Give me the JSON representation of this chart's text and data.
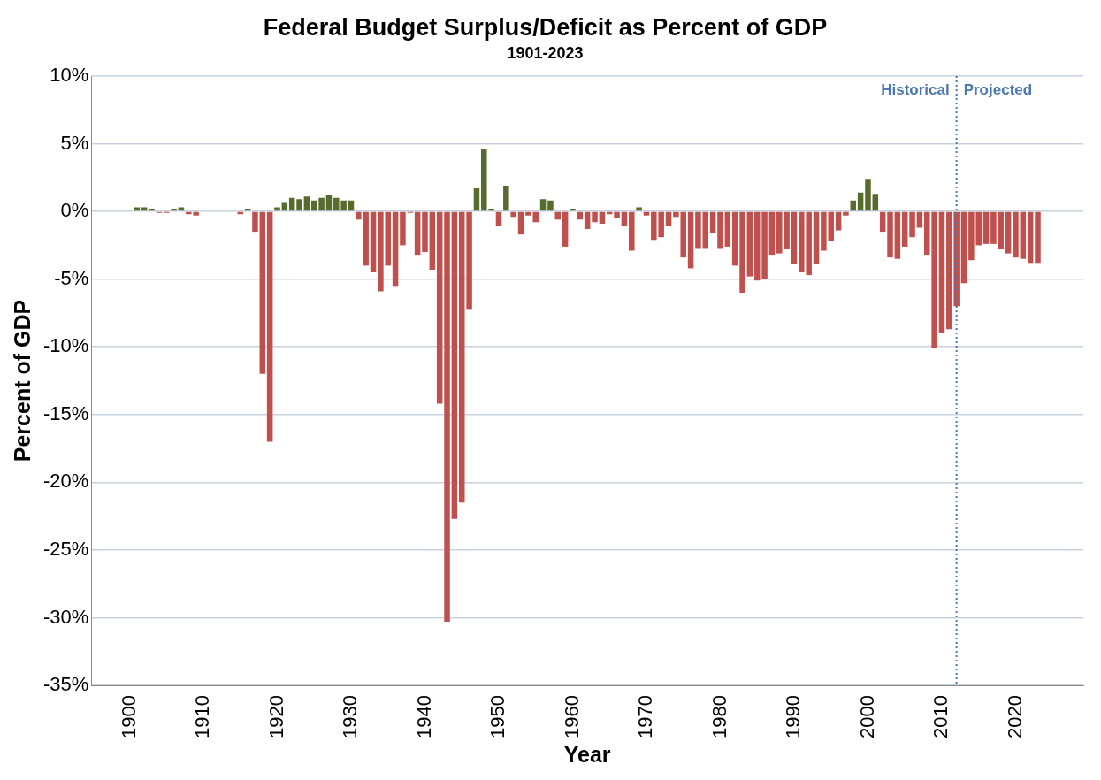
{
  "chart_data": {
    "type": "bar",
    "title": "Federal Budget Surplus/Deficit as Percent of GDP",
    "subtitle": "1901-2023",
    "xlabel": "Year",
    "ylabel": "Percent of GDP",
    "x": [
      1901,
      1902,
      1903,
      1904,
      1905,
      1906,
      1907,
      1908,
      1909,
      1910,
      1911,
      1912,
      1913,
      1914,
      1915,
      1916,
      1917,
      1918,
      1919,
      1920,
      1921,
      1922,
      1923,
      1924,
      1925,
      1926,
      1927,
      1928,
      1929,
      1930,
      1931,
      1932,
      1933,
      1934,
      1935,
      1936,
      1937,
      1938,
      1939,
      1940,
      1941,
      1942,
      1943,
      1944,
      1945,
      1946,
      1947,
      1948,
      1949,
      1950,
      1951,
      1952,
      1953,
      1954,
      1955,
      1956,
      1957,
      1958,
      1959,
      1960,
      1961,
      1962,
      1963,
      1964,
      1965,
      1966,
      1967,
      1968,
      1969,
      1970,
      1971,
      1972,
      1973,
      1974,
      1975,
      1976,
      1977,
      1978,
      1979,
      1980,
      1981,
      1982,
      1983,
      1984,
      1985,
      1986,
      1987,
      1988,
      1989,
      1990,
      1991,
      1992,
      1993,
      1994,
      1995,
      1996,
      1997,
      1998,
      1999,
      2000,
      2001,
      2002,
      2003,
      2004,
      2005,
      2006,
      2007,
      2008,
      2009,
      2010,
      2011,
      2012,
      2013,
      2014,
      2015,
      2016,
      2017,
      2018,
      2019,
      2020,
      2021,
      2022,
      2023
    ],
    "values": [
      0.3,
      0.3,
      0.2,
      -0.1,
      -0.1,
      0.2,
      0.3,
      -0.2,
      -0.3,
      0,
      0,
      0,
      0,
      0,
      -0.2,
      0.2,
      -1.5,
      -12,
      -17,
      0.3,
      0.7,
      1.0,
      0.9,
      1.1,
      0.8,
      1.0,
      1.2,
      1.0,
      0.8,
      0.8,
      -0.6,
      -4.0,
      -4.5,
      -5.9,
      -4.0,
      -5.5,
      -2.5,
      -0.1,
      -3.2,
      -3.0,
      -4.3,
      -14.2,
      -30.3,
      -22.7,
      -21.5,
      -7.2,
      1.7,
      4.6,
      0.2,
      -1.1,
      1.9,
      -0.4,
      -1.7,
      -0.3,
      -0.8,
      0.9,
      0.8,
      -0.6,
      -2.6,
      0.2,
      -0.6,
      -1.3,
      -0.8,
      -0.9,
      -0.2,
      -0.5,
      -1.1,
      -2.9,
      0.3,
      -0.3,
      -2.1,
      -1.9,
      -1.1,
      -0.4,
      -3.4,
      -4.2,
      -2.7,
      -2.7,
      -1.6,
      -2.7,
      -2.6,
      -4.0,
      -6.0,
      -4.8,
      -5.1,
      -5.0,
      -3.2,
      -3.1,
      -2.8,
      -3.9,
      -4.5,
      -4.7,
      -3.9,
      -2.9,
      -2.2,
      -1.4,
      -0.3,
      0.8,
      1.4,
      2.4,
      1.3,
      -1.5,
      -3.4,
      -3.5,
      -2.6,
      -1.9,
      -1.2,
      -3.2,
      -10.1,
      -9.0,
      -8.7,
      -7.0,
      -5.3,
      -3.6,
      -2.5,
      -2.4,
      -2.4,
      -2.8,
      -3.1,
      -3.4,
      -3.5,
      -3.8,
      -3.8
    ],
    "colors": [
      "#576b2c",
      "#576b2c",
      "#576b2c",
      "#c0504d",
      "#c0504d",
      "#576b2c",
      "#576b2c",
      "#c0504d",
      "#c0504d",
      "#576b2c",
      "#576b2c",
      "#576b2c",
      "#576b2c",
      "#576b2c",
      "#c0504d",
      "#576b2c",
      "#c0504d",
      "#c0504d",
      "#c0504d",
      "#576b2c",
      "#576b2c",
      "#576b2c",
      "#576b2c",
      "#576b2c",
      "#576b2c",
      "#576b2c",
      "#576b2c",
      "#576b2c",
      "#576b2c",
      "#576b2c",
      "#c0504d",
      "#c0504d",
      "#c0504d",
      "#c0504d",
      "#c0504d",
      "#c0504d",
      "#c0504d",
      "#c0504d",
      "#c0504d",
      "#c0504d",
      "#c0504d",
      "#c0504d",
      "#c0504d",
      "#c0504d",
      "#c0504d",
      "#c0504d",
      "#576b2c",
      "#576b2c",
      "#576b2c",
      "#c0504d",
      "#576b2c",
      "#c0504d",
      "#c0504d",
      "#c0504d",
      "#c0504d",
      "#576b2c",
      "#576b2c",
      "#c0504d",
      "#c0504d",
      "#576b2c",
      "#c0504d",
      "#c0504d",
      "#c0504d",
      "#c0504d",
      "#c0504d",
      "#c0504d",
      "#c0504d",
      "#c0504d",
      "#576b2c",
      "#c0504d",
      "#c0504d",
      "#c0504d",
      "#c0504d",
      "#c0504d",
      "#c0504d",
      "#c0504d",
      "#c0504d",
      "#c0504d",
      "#c0504d",
      "#c0504d",
      "#c0504d",
      "#c0504d",
      "#c0504d",
      "#c0504d",
      "#c0504d",
      "#c0504d",
      "#c0504d",
      "#c0504d",
      "#c0504d",
      "#c0504d",
      "#c0504d",
      "#c0504d",
      "#c0504d",
      "#c0504d",
      "#c0504d",
      "#c0504d",
      "#c0504d",
      "#576b2c",
      "#576b2c",
      "#576b2c",
      "#576b2c",
      "#c0504d",
      "#c0504d",
      "#c0504d",
      "#c0504d",
      "#c0504d",
      "#c0504d",
      "#c0504d",
      "#c0504d",
      "#c0504d",
      "#c0504d",
      "#c0504d",
      "#c0504d",
      "#c0504d",
      "#c0504d",
      "#c0504d",
      "#c0504d",
      "#c0504d",
      "#c0504d",
      "#c0504d",
      "#c0504d",
      "#c0504d",
      "#c0504d"
    ],
    "xlim": [
      1900,
      2024
    ],
    "xticks": [
      1900,
      1910,
      1920,
      1930,
      1940,
      1950,
      1960,
      1970,
      1980,
      1990,
      2000,
      2010,
      2020
    ],
    "ylim": [
      -35,
      10
    ],
    "yticks": [
      {
        "value": -35,
        "label": "-35%"
      },
      {
        "value": -30,
        "label": "-30%"
      },
      {
        "value": -25,
        "label": "-25%"
      },
      {
        "value": -20,
        "label": "-20%"
      },
      {
        "value": -15,
        "label": "-15%"
      },
      {
        "value": -10,
        "label": "-10%"
      },
      {
        "value": -5,
        "label": "-5%"
      },
      {
        "value": 0,
        "label": "0%"
      },
      {
        "value": 5,
        "label": "5%"
      },
      {
        "value": 10,
        "label": "10%"
      }
    ],
    "grid": "y",
    "legend": false,
    "ref_lines": [
      {
        "axis": "x",
        "value": 2012,
        "label": "Historical",
        "color": "#4a78b0",
        "line_style": "dotted"
      }
    ],
    "annotations": [
      {
        "text": "Projected",
        "x": 2012,
        "y": 10
      }
    ]
  }
}
